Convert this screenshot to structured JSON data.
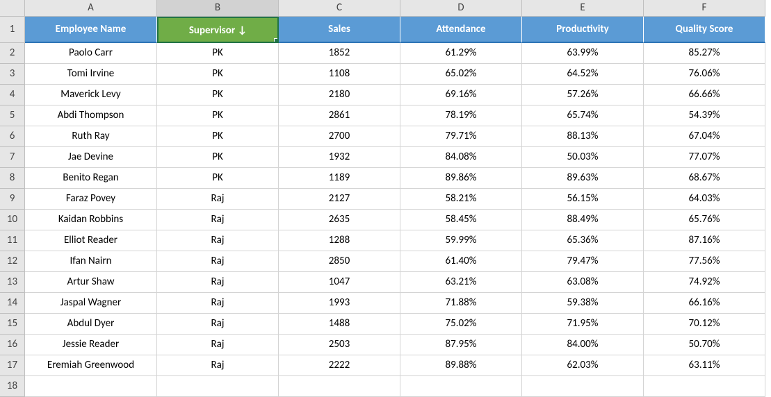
{
  "columns": {
    "letters": [
      "A",
      "B",
      "C",
      "D",
      "E",
      "F"
    ],
    "selected_index": 1
  },
  "headers": {
    "a": "Employee Name",
    "b": "Supervisor",
    "b_sort_glyph": "↓",
    "c": "Sales",
    "d": "Attendance",
    "e": "Productivity",
    "f": "Quality Score"
  },
  "colors": {
    "header_bg": "#5b9bd5",
    "header_sort_bg": "#70ad47",
    "header_sort_border": "#217346",
    "row_num_bg": "#e6e6e6"
  },
  "rows": [
    {
      "num": "2",
      "name": "Paolo Carr",
      "sup": "PK",
      "sales": "1852",
      "att": "61.29%",
      "prod": "63.99%",
      "qual": "85.27%"
    },
    {
      "num": "3",
      "name": "Tomi Irvine",
      "sup": "PK",
      "sales": "1108",
      "att": "65.02%",
      "prod": "64.52%",
      "qual": "76.06%"
    },
    {
      "num": "4",
      "name": "Maverick Levy",
      "sup": "PK",
      "sales": "2180",
      "att": "69.16%",
      "prod": "57.26%",
      "qual": "66.66%"
    },
    {
      "num": "5",
      "name": "Abdi Thompson",
      "sup": "PK",
      "sales": "2861",
      "att": "78.19%",
      "prod": "65.74%",
      "qual": "54.39%"
    },
    {
      "num": "6",
      "name": "Ruth Ray",
      "sup": "PK",
      "sales": "2700",
      "att": "79.71%",
      "prod": "88.13%",
      "qual": "67.04%"
    },
    {
      "num": "7",
      "name": "Jae Devine",
      "sup": "PK",
      "sales": "1932",
      "att": "84.08%",
      "prod": "50.03%",
      "qual": "77.07%"
    },
    {
      "num": "8",
      "name": "Benito Regan",
      "sup": "PK",
      "sales": "1189",
      "att": "89.86%",
      "prod": "89.63%",
      "qual": "68.67%"
    },
    {
      "num": "9",
      "name": "Faraz Povey",
      "sup": "Raj",
      "sales": "2127",
      "att": "58.21%",
      "prod": "56.15%",
      "qual": "64.03%"
    },
    {
      "num": "10",
      "name": "Kaidan Robbins",
      "sup": "Raj",
      "sales": "2635",
      "att": "58.45%",
      "prod": "88.49%",
      "qual": "65.76%"
    },
    {
      "num": "11",
      "name": "Elliot Reader",
      "sup": "Raj",
      "sales": "1288",
      "att": "59.99%",
      "prod": "65.36%",
      "qual": "87.16%"
    },
    {
      "num": "12",
      "name": "Ifan Nairn",
      "sup": "Raj",
      "sales": "2850",
      "att": "61.40%",
      "prod": "79.47%",
      "qual": "77.56%"
    },
    {
      "num": "13",
      "name": "Artur Shaw",
      "sup": "Raj",
      "sales": "1047",
      "att": "63.21%",
      "prod": "63.08%",
      "qual": "74.92%"
    },
    {
      "num": "14",
      "name": "Jaspal Wagner",
      "sup": "Raj",
      "sales": "1993",
      "att": "71.88%",
      "prod": "59.38%",
      "qual": "66.16%"
    },
    {
      "num": "15",
      "name": "Abdul Dyer",
      "sup": "Raj",
      "sales": "1488",
      "att": "75.02%",
      "prod": "71.95%",
      "qual": "70.12%"
    },
    {
      "num": "16",
      "name": "Jessie Reader",
      "sup": "Raj",
      "sales": "2503",
      "att": "87.95%",
      "prod": "84.00%",
      "qual": "50.70%"
    },
    {
      "num": "17",
      "name": "Eremiah Greenwood",
      "sup": "Raj",
      "sales": "2222",
      "att": "89.88%",
      "prod": "62.03%",
      "qual": "63.11%"
    }
  ],
  "empty_row_num": "18"
}
